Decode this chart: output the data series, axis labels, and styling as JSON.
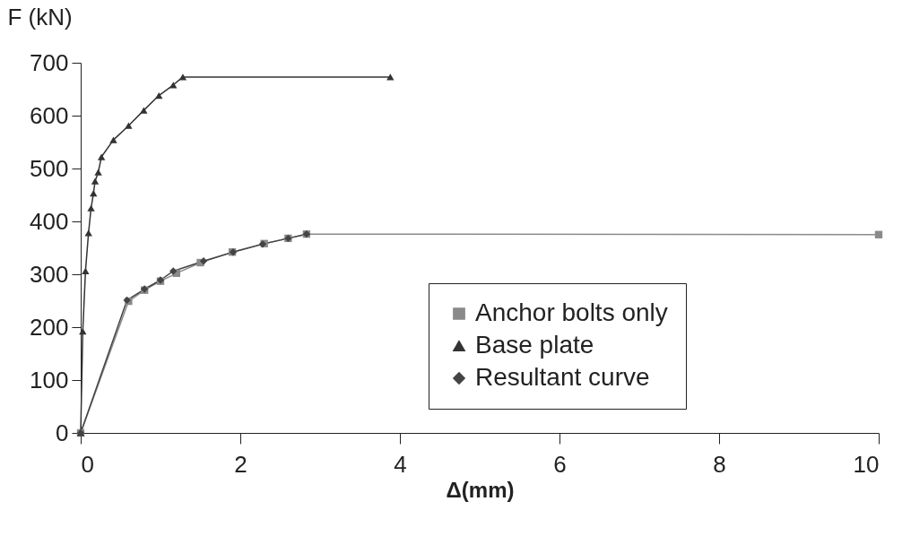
{
  "chart_data": {
    "type": "line",
    "xlabel": "Δ(mm)",
    "ylabel": "F (kN)",
    "xlim": [
      0,
      10
    ],
    "ylim": [
      0,
      700
    ],
    "xticks": [
      0,
      2,
      4,
      6,
      8,
      10
    ],
    "yticks": [
      0,
      100,
      200,
      300,
      400,
      500,
      600,
      700
    ],
    "grid": false,
    "legend": "bottom right",
    "series": [
      {
        "name": "Anchor bolts only",
        "color": "#8a8a8a",
        "marker": "square",
        "x": [
          0,
          0.6,
          0.8,
          1.0,
          1.2,
          1.5,
          1.9,
          2.3,
          2.6,
          2.83,
          10
        ],
        "values": [
          0,
          249,
          270,
          287,
          302,
          322,
          342,
          358,
          368,
          376,
          375
        ]
      },
      {
        "name": "Base plate",
        "color": "#333333",
        "marker": "triangle",
        "x": [
          0,
          0.026,
          0.06,
          0.098,
          0.13,
          0.16,
          0.18,
          0.22,
          0.26,
          0.41,
          0.6,
          0.79,
          0.98,
          1.16,
          1.28,
          3.88
        ],
        "values": [
          0,
          192,
          306,
          378,
          425,
          453,
          476,
          493,
          522,
          554,
          581,
          610,
          638,
          658,
          673,
          673
        ]
      },
      {
        "name": "Resultant curve",
        "color": "#444444",
        "marker": "diamond",
        "x": [
          0,
          0.58,
          0.8,
          1.0,
          1.16,
          1.54,
          1.91,
          2.28,
          2.6,
          2.83
        ],
        "values": [
          0,
          251,
          272,
          289,
          306,
          325,
          342,
          357,
          368,
          376
        ]
      }
    ]
  }
}
